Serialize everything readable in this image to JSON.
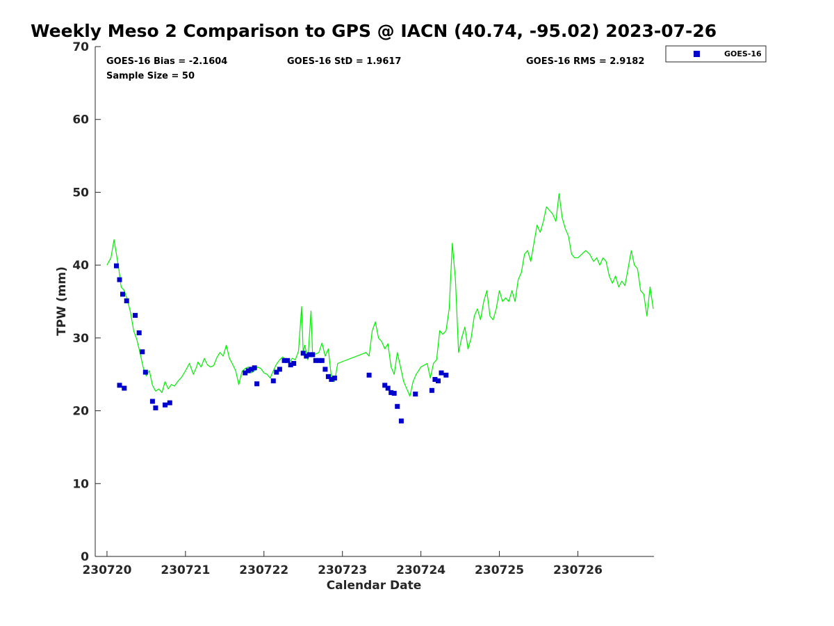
{
  "chart_data": {
    "type": "scatter",
    "title": "Weekly Meso 2 Comparison to GPS @ IACN (40.74, -95.02) 2023-07-26",
    "xlabel": "Calendar Date",
    "ylabel": "TPW (mm)",
    "ylim": [
      0,
      70
    ],
    "yticks": [
      "0",
      "10",
      "20",
      "30",
      "40",
      "50",
      "60",
      "70"
    ],
    "xticks": [
      "230720",
      "230721",
      "230722",
      "230723",
      "230724",
      "230725",
      "230726"
    ],
    "xlim_days": [
      -0.15,
      6.97
    ],
    "stats": {
      "bias": "GOES-16 Bias = -2.1604",
      "std": "GOES-16 StD = 1.9617",
      "rms": "GOES-16 RMS = 2.9182",
      "sample": "Sample Size = 50"
    },
    "legend": {
      "position": "top-right",
      "entries": [
        {
          "name": "GOES-16",
          "color": "#0000cc"
        }
      ]
    },
    "colors": {
      "gps_line": "#00ee00",
      "goes_marker": "#0000cc",
      "axis": "#262626"
    },
    "series": [
      {
        "name": "GOES-16",
        "kind": "marker",
        "x_days": [
          0.12,
          0.16,
          0.2,
          0.25,
          0.36,
          0.41,
          0.45,
          0.49,
          0.58,
          0.62,
          0.74,
          0.8,
          0.16,
          0.22,
          1.76,
          1.8,
          1.84,
          1.88,
          1.91,
          2.12,
          2.16,
          2.2,
          2.26,
          2.3,
          2.34,
          2.38,
          2.5,
          2.54,
          2.58,
          2.62,
          2.66,
          2.7,
          2.74,
          2.78,
          2.82,
          2.86,
          2.9,
          3.34,
          3.54,
          3.58,
          3.62,
          3.66,
          3.7,
          3.75,
          3.93,
          4.14,
          4.18,
          4.22,
          4.26,
          4.32
        ],
        "values": [
          39.9,
          38.0,
          36.0,
          35.1,
          33.1,
          30.7,
          28.1,
          25.3,
          21.3,
          20.4,
          20.8,
          21.1,
          23.5,
          23.1,
          25.2,
          25.5,
          25.7,
          25.9,
          23.7,
          24.1,
          25.3,
          25.7,
          26.9,
          26.9,
          26.3,
          26.5,
          27.9,
          27.5,
          27.7,
          27.7,
          26.9,
          26.9,
          26.9,
          25.7,
          24.7,
          24.3,
          24.5,
          24.9,
          23.5,
          23.1,
          22.5,
          22.4,
          20.6,
          18.6,
          22.3,
          22.8,
          24.3,
          24.1,
          25.2,
          24.9
        ]
      },
      {
        "name": "GPS",
        "kind": "line",
        "x_days": [
          0.0,
          0.05,
          0.09,
          0.12,
          0.15,
          0.18,
          0.22,
          0.26,
          0.3,
          0.34,
          0.38,
          0.42,
          0.46,
          0.5,
          0.54,
          0.58,
          0.62,
          0.66,
          0.7,
          0.74,
          0.78,
          0.82,
          0.86,
          0.9,
          0.95,
          1.0,
          1.05,
          1.1,
          1.14,
          1.16,
          1.2,
          1.24,
          1.28,
          1.32,
          1.36,
          1.4,
          1.44,
          1.48,
          1.52,
          1.56,
          1.6,
          1.64,
          1.68,
          1.72,
          1.76,
          1.8,
          1.84,
          1.88,
          1.92,
          1.96,
          2.0,
          2.04,
          2.08,
          2.12,
          2.16,
          2.2,
          2.24,
          2.28,
          2.32,
          2.36,
          2.4,
          2.44,
          2.48,
          2.5,
          2.52,
          2.56,
          2.6,
          2.62,
          2.66,
          2.7,
          2.74,
          2.78,
          2.82,
          2.86,
          2.9,
          2.94,
          3.3,
          3.34,
          3.38,
          3.42,
          3.46,
          3.5,
          3.54,
          3.58,
          3.62,
          3.66,
          3.7,
          3.74,
          3.78,
          3.82,
          3.86,
          3.9,
          3.94,
          4.0,
          4.08,
          4.12,
          4.16,
          4.2,
          4.24,
          4.28,
          4.32,
          4.36,
          4.4,
          4.44,
          4.48,
          4.52,
          4.56,
          4.6,
          4.64,
          4.68,
          4.72,
          4.76,
          4.8,
          4.84,
          4.88,
          4.92,
          4.96,
          5.0,
          5.04,
          5.08,
          5.12,
          5.16,
          5.2,
          5.24,
          5.28,
          5.32,
          5.36,
          5.4,
          5.44,
          5.48,
          5.52,
          5.56,
          5.6,
          5.64,
          5.68,
          5.72,
          5.76,
          5.8,
          5.84,
          5.88,
          5.92,
          5.96,
          6.0,
          6.05,
          6.1,
          6.15,
          6.2,
          6.24,
          6.28,
          6.32,
          6.36,
          6.4,
          6.44,
          6.48,
          6.52,
          6.56,
          6.6,
          6.64,
          6.68,
          6.72,
          6.76,
          6.8,
          6.84,
          6.88,
          6.92,
          6.96
        ],
        "values": [
          40.0,
          41.0,
          43.5,
          41.5,
          39.5,
          37.0,
          36.5,
          35.2,
          33.5,
          31.0,
          29.8,
          28.0,
          26.0,
          24.8,
          25.5,
          23.5,
          22.7,
          23.0,
          22.5,
          24.0,
          23.0,
          23.6,
          23.4,
          24.0,
          24.6,
          25.5,
          26.5,
          25.0,
          26.0,
          26.7,
          26.0,
          27.2,
          26.3,
          26.0,
          26.2,
          27.3,
          28.0,
          27.5,
          29.0,
          27.2,
          26.4,
          25.5,
          23.6,
          25.4,
          25.8,
          26.0,
          25.2,
          25.5,
          26.0,
          25.8,
          25.2,
          25.0,
          24.5,
          25.5,
          26.4,
          27.0,
          27.4,
          27.0,
          26.5,
          27.2,
          27.0,
          28.2,
          34.3,
          28.0,
          29.0,
          27.0,
          33.7,
          27.5,
          27.8,
          28.0,
          29.3,
          27.5,
          28.5,
          24.5,
          24.0,
          26.5,
          28.0,
          27.5,
          31.0,
          32.2,
          30.0,
          29.5,
          28.5,
          29.2,
          26.0,
          25.0,
          28.0,
          26.0,
          24.0,
          23.0,
          22.0,
          24.0,
          25.0,
          26.0,
          26.5,
          24.5,
          26.5,
          27.0,
          31.0,
          30.5,
          31.0,
          34.0,
          43.0,
          38.0,
          28.0,
          30.0,
          31.5,
          28.5,
          30.0,
          33.0,
          34.0,
          32.5,
          35.0,
          36.5,
          33.0,
          32.5,
          34.0,
          36.5,
          35.0,
          35.5,
          35.0,
          36.5,
          35.0,
          38.0,
          39.0,
          41.5,
          42.0,
          40.5,
          43.0,
          45.5,
          44.5,
          46.0,
          48.0,
          47.5,
          47.0,
          46.0,
          49.8,
          46.5,
          45.0,
          44.0,
          41.5,
          41.0,
          41.0,
          41.5,
          42.0,
          41.5,
          40.5,
          41.0,
          40.0,
          41.0,
          40.5,
          38.5,
          37.5,
          38.5,
          37.0,
          37.8,
          37.2,
          39.5,
          42.0,
          40.0,
          39.5,
          36.5,
          36.0,
          33.0,
          37.0,
          34.0
        ]
      }
    ]
  }
}
